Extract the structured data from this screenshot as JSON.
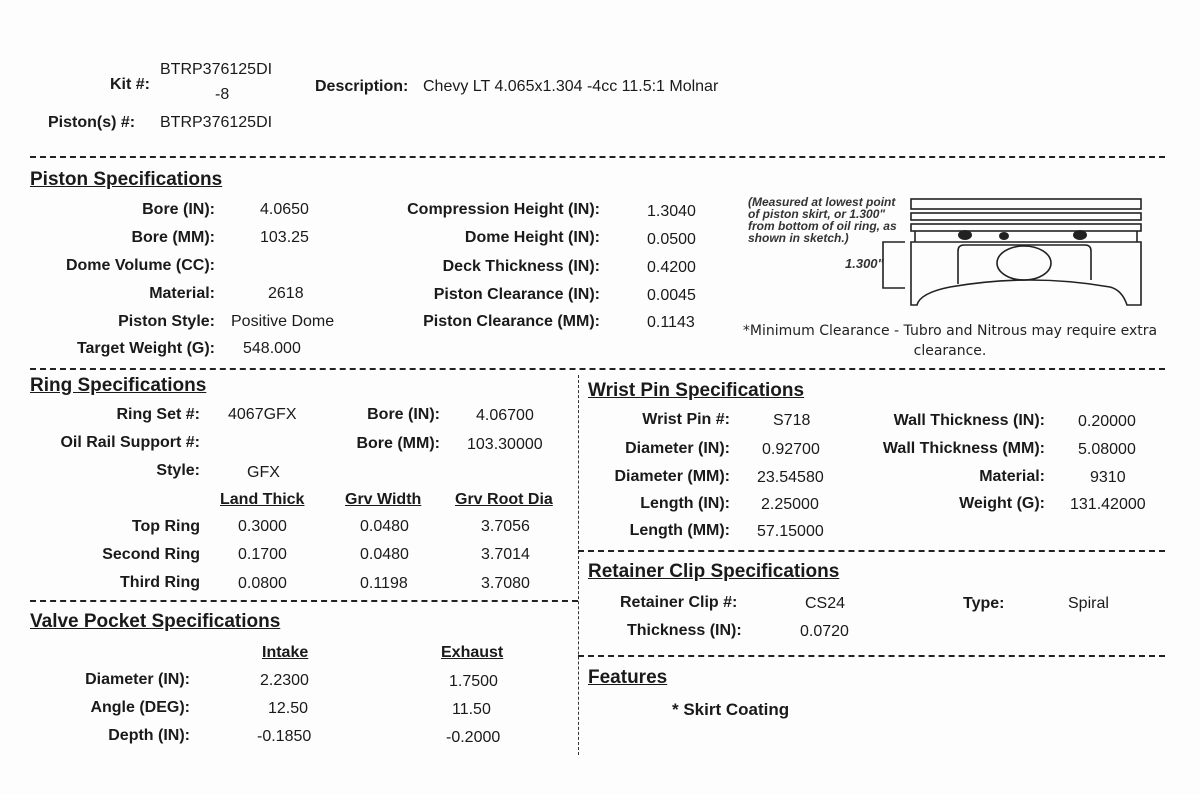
{
  "header": {
    "kit_label": "Kit #:",
    "kit_value_line1": "BTRP376125DI",
    "kit_value_line2": "-8",
    "description_label": "Description:",
    "description_value": "Chevy LT 4.065x1.304 -4cc 11.5:1 Molnar",
    "pistons_label": "Piston(s) #:",
    "pistons_value": "BTRP376125DI"
  },
  "piston_specs": {
    "title": "Piston Specifications",
    "left": [
      {
        "label": "Bore (IN):",
        "value": "4.0650"
      },
      {
        "label": "Bore (MM):",
        "value": "103.25"
      },
      {
        "label": "Dome Volume (CC):",
        "value": ""
      },
      {
        "label": "Material:",
        "value": "2618"
      },
      {
        "label": "Piston Style:",
        "value": "Positive Dome"
      },
      {
        "label": "Target Weight (G):",
        "value": "548.000"
      }
    ],
    "right": [
      {
        "label": "Compression Height (IN):",
        "value": "1.3040"
      },
      {
        "label": "Dome Height (IN):",
        "value": "0.0500"
      },
      {
        "label": "Deck Thickness (IN):",
        "value": "0.4200"
      },
      {
        "label": "Piston Clearance (IN):",
        "value": "0.0045"
      },
      {
        "label": "Piston Clearance (MM):",
        "value": "0.1143"
      }
    ],
    "sketch_note": [
      "(Measured at lowest point",
      "of  piston skirt, or 1.300\"",
      "from bottom of oil ring, as",
      "shown in sketch.)"
    ],
    "sketch_dimension": "1.300\"",
    "clearance_note_line1": "*Minimum Clearance - Tubro and Nitrous may require extra",
    "clearance_note_line2": "clearance."
  },
  "ring_specs": {
    "title": "Ring Specifications",
    "ring_set_label": "Ring Set #:",
    "ring_set_value": "4067GFX",
    "oil_rail_label": "Oil Rail Support #:",
    "oil_rail_value": "",
    "style_label": "Style:",
    "style_value": "GFX",
    "bore_in_label": "Bore (IN):",
    "bore_in_value": "4.06700",
    "bore_mm_label": "Bore (MM):",
    "bore_mm_value": "103.30000",
    "columns": [
      "Land Thick",
      "Grv Width",
      "Grv Root Dia"
    ],
    "rows": [
      {
        "label": "Top Ring",
        "values": [
          "0.3000",
          "0.0480",
          "3.7056"
        ]
      },
      {
        "label": "Second Ring",
        "values": [
          "0.1700",
          "0.0480",
          "3.7014"
        ]
      },
      {
        "label": "Third Ring",
        "values": [
          "0.0800",
          "0.1198",
          "3.7080"
        ]
      }
    ]
  },
  "valve_pocket_specs": {
    "title": "Valve Pocket Specifications",
    "columns": [
      "Intake",
      "Exhaust"
    ],
    "rows": [
      {
        "label": "Diameter (IN):",
        "values": [
          "2.2300",
          "1.7500"
        ]
      },
      {
        "label": "Angle (DEG):",
        "values": [
          "12.50",
          "11.50"
        ]
      },
      {
        "label": "Depth (IN):",
        "values": [
          "-0.1850",
          "-0.2000"
        ]
      }
    ]
  },
  "wrist_pin_specs": {
    "title": "Wrist Pin Specifications",
    "left": [
      {
        "label": "Wrist Pin #:",
        "value": "S718"
      },
      {
        "label": "Diameter (IN):",
        "value": "0.92700"
      },
      {
        "label": "Diameter (MM):",
        "value": "23.54580"
      },
      {
        "label": "Length (IN):",
        "value": "2.25000"
      },
      {
        "label": "Length (MM):",
        "value": "57.15000"
      }
    ],
    "right": [
      {
        "label": "Wall Thickness (IN):",
        "value": "0.20000"
      },
      {
        "label": "Wall Thickness (MM):",
        "value": "5.08000"
      },
      {
        "label": "Material:",
        "value": "9310"
      },
      {
        "label": "Weight (G):",
        "value": "131.42000"
      }
    ]
  },
  "retainer_clip_specs": {
    "title": "Retainer Clip Specifications",
    "clip_label": "Retainer Clip #:",
    "clip_value": "CS24",
    "type_label": "Type:",
    "type_value": "Spiral",
    "thickness_label": "Thickness (IN):",
    "thickness_value": "0.0720"
  },
  "features": {
    "title": "Features",
    "items": [
      "* Skirt Coating"
    ]
  }
}
